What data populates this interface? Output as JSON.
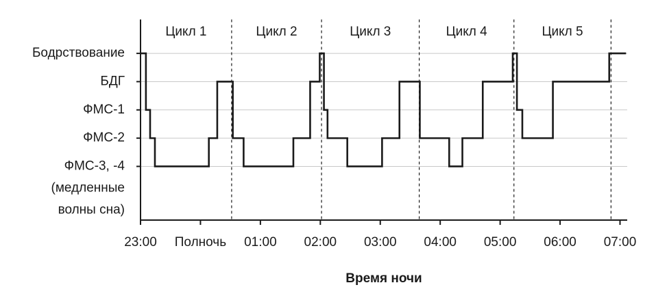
{
  "chart_data": {
    "type": "step",
    "xlabel": "Время ночи",
    "x": [
      23.0,
      23.09,
      23.16,
      23.24,
      24.14,
      24.28,
      24.54,
      24.72,
      25.55,
      25.83,
      25.99,
      26.06,
      26.12,
      26.45,
      27.03,
      27.32,
      27.66,
      28.15,
      28.37,
      28.71,
      29.21,
      29.28,
      29.37,
      29.88,
      30.82,
      31.1
    ],
    "values": [
      5,
      3,
      2,
      1,
      2,
      4,
      2,
      1,
      2,
      4,
      5,
      3,
      2,
      1,
      2,
      4,
      2,
      1,
      2,
      4,
      5,
      3,
      2,
      4,
      5,
      5
    ],
    "color": "#1a1a1a",
    "xlim": [
      23,
      31.12
    ],
    "ylim": [
      -0.9,
      6.2
    ],
    "xticks": [
      {
        "value": 23,
        "label": "23:00"
      },
      {
        "value": 24,
        "label": "Полночь"
      },
      {
        "value": 25,
        "label": "01:00"
      },
      {
        "value": 26,
        "label": "02:00"
      },
      {
        "value": 27,
        "label": "03:00"
      },
      {
        "value": 28,
        "label": "04:00"
      },
      {
        "value": 29,
        "label": "05:00"
      },
      {
        "value": 30,
        "label": "06:00"
      },
      {
        "value": 31,
        "label": "07:00"
      }
    ],
    "yticks": [
      {
        "value": 5,
        "label": [
          "Бодрствование"
        ]
      },
      {
        "value": 4,
        "label": [
          "БДГ"
        ]
      },
      {
        "value": 3,
        "label": [
          "ФМС-1"
        ]
      },
      {
        "value": 2,
        "label": [
          "ФМС-2"
        ]
      },
      {
        "value": 1,
        "label": [
          "ФМС-3, -4",
          "(медленные",
          "волны сна)"
        ]
      }
    ],
    "grid": true,
    "cycle_boundaries": [
      24.52,
      26.02,
      27.65,
      29.23,
      30.85
    ],
    "cycle_labels": [
      "Цикл 1",
      "Цикл 2",
      "Цикл 3",
      "Цикл 4",
      "Цикл 5"
    ]
  }
}
